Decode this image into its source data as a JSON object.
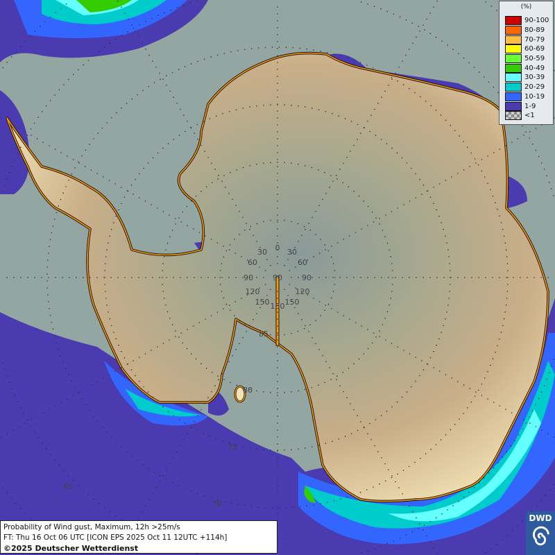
{
  "map": {
    "projection": "polar stereographic south",
    "ocean_color": "#93a6a2",
    "coastline_color": "#ff9900",
    "meridian_labels": [
      "0",
      "30",
      "30",
      "60",
      "60",
      "90",
      "90",
      "90",
      "120",
      "120",
      "150",
      "150",
      "180"
    ],
    "latitude_labels": [
      "85",
      "80",
      "75",
      "70",
      "65"
    ]
  },
  "legend": {
    "unit": "(%)",
    "entries": [
      {
        "label": "90-100",
        "color": "#cc0000"
      },
      {
        "label": "80-89",
        "color": "#ff6600"
      },
      {
        "label": "70-79",
        "color": "#ffc040"
      },
      {
        "label": "60-69",
        "color": "#ffff00"
      },
      {
        "label": "50-59",
        "color": "#66ff33"
      },
      {
        "label": "40-49",
        "color": "#33cc00"
      },
      {
        "label": "30-39",
        "color": "#66ffff"
      },
      {
        "label": "20-29",
        "color": "#00cccc"
      },
      {
        "label": "10-19",
        "color": "#3366ff"
      },
      {
        "label": "1-9",
        "color": "#4a3cb0"
      },
      {
        "label": "<1",
        "color": "checker"
      }
    ]
  },
  "footer": {
    "line1": "Probability of Wind gust, Maximum, 12h >25m/s",
    "line2": "FT: Thu 16 Oct 06 UTC [ICON EPS 2025 Oct 11 12UTC +114h]",
    "line3": "©2025 Deutscher Wetterdienst"
  },
  "logo": {
    "text": "DWD"
  }
}
